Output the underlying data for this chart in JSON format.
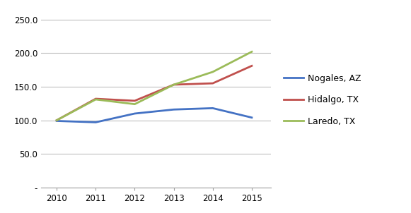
{
  "years": [
    2010,
    2011,
    2012,
    2013,
    2014,
    2015
  ],
  "nogales": [
    99,
    97,
    110,
    116,
    118,
    104
  ],
  "hidalgo": [
    100,
    132,
    129,
    153,
    155,
    181
  ],
  "laredo": [
    100,
    131,
    124,
    153,
    172,
    202
  ],
  "colors": {
    "nogales": "#4472C4",
    "hidalgo": "#C0504D",
    "laredo": "#9BBB59"
  },
  "legend_labels": [
    "Nogales, AZ",
    "Hidalgo, TX",
    "Laredo, TX"
  ],
  "ylim": [
    0,
    260
  ],
  "yticks": [
    0,
    50,
    100,
    150,
    200,
    250
  ],
  "ytick_labels": [
    "-",
    "50.0",
    "100.0",
    "150.0",
    "200.0",
    "250.0"
  ],
  "background_color": "#ffffff",
  "grid_color": "#bfbfbf",
  "line_width": 2.0,
  "figsize": [
    5.81,
    3.02
  ],
  "dpi": 100
}
